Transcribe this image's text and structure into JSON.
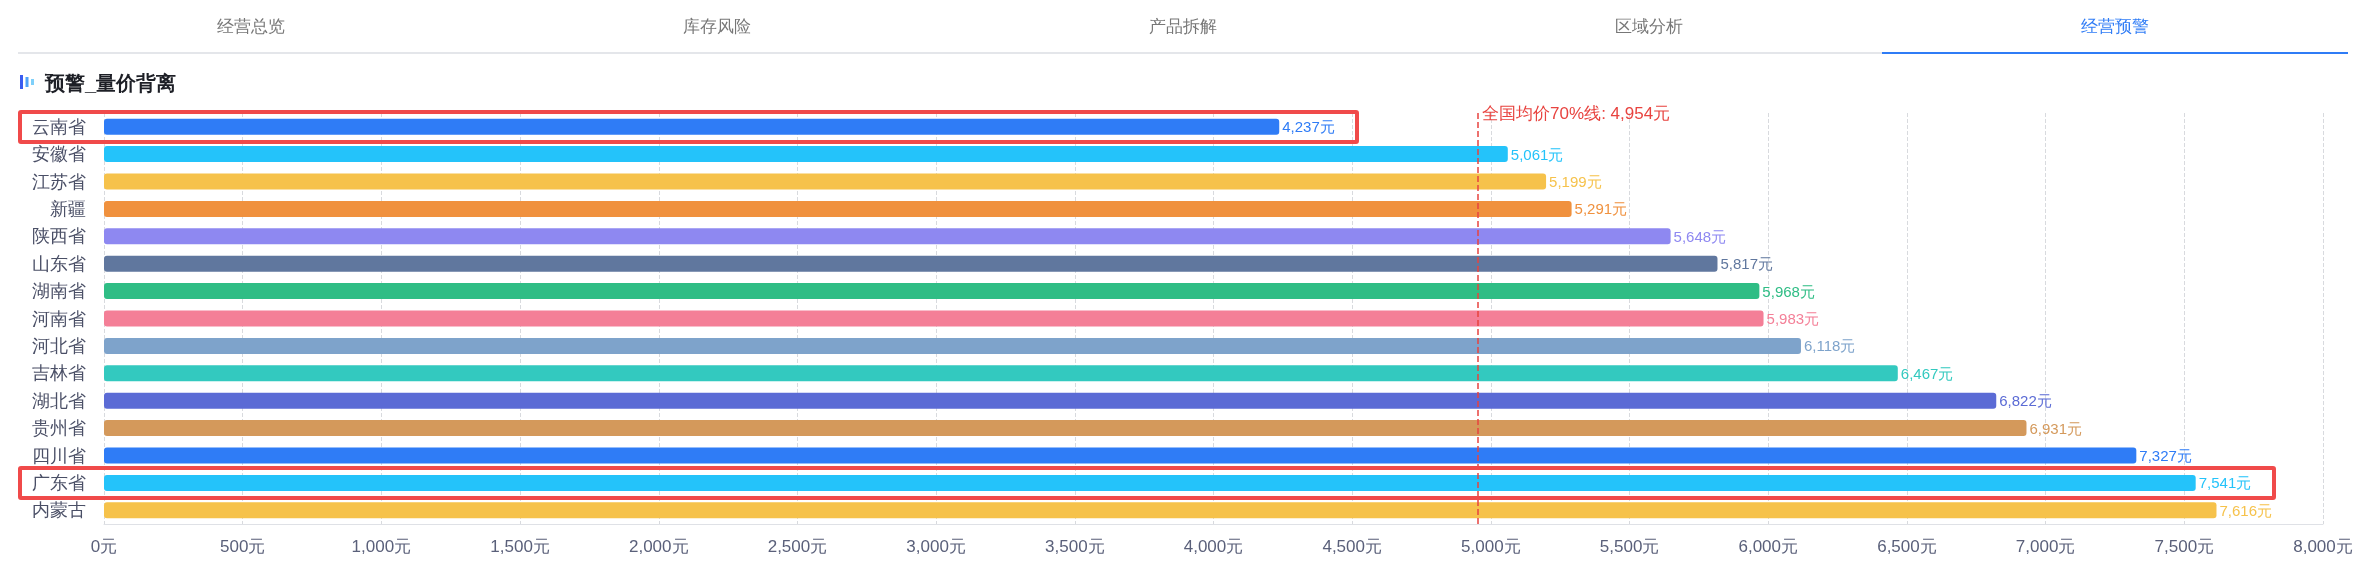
{
  "chart_data": {
    "type": "bar",
    "orientation": "horizontal",
    "title": "预警_量价背离",
    "annotations": [
      "经营总览",
      "库存风险",
      "产品拆解",
      "区域分析",
      "经营预警"
    ],
    "categories": [
      "云南省",
      "安徽省",
      "江苏省",
      "新疆",
      "陕西省",
      "山东省",
      "湖南省",
      "河南省",
      "河北省",
      "吉林省",
      "湖北省",
      "贵州省",
      "四川省",
      "广东省",
      "内蒙古"
    ],
    "values": [
      4237,
      5061,
      5199,
      5291,
      5648,
      5817,
      5968,
      5983,
      6118,
      6467,
      6822,
      6931,
      7327,
      7541,
      7616
    ],
    "value_labels": [
      "4,237元",
      "5,061元",
      "5,199元",
      "5,291元",
      "5,648元",
      "5,817元",
      "5,968元",
      "5,983元",
      "6,118元",
      "6,467元",
      "6,822元",
      "6,931元",
      "7,327元",
      "7,541元",
      "7,616元"
    ],
    "colors": [
      "#2f7cf6",
      "#24c3fa",
      "#f6c24b",
      "#f0913e",
      "#8e88f1",
      "#60779e",
      "#2fbd85",
      "#f47f97",
      "#7ea3cb",
      "#33c9bf",
      "#5b6bd5",
      "#d4995b",
      "#2f7cf6",
      "#24c3fa",
      "#f6c24b"
    ],
    "xlim": [
      0,
      8000
    ],
    "xticks": [
      {
        "value": 0,
        "label": "0元"
      },
      {
        "value": 500,
        "label": "500元"
      },
      {
        "value": 1000,
        "label": "1,000元"
      },
      {
        "value": 1500,
        "label": "1,500元"
      },
      {
        "value": 2000,
        "label": "2,000元"
      },
      {
        "value": 2500,
        "label": "2,500元"
      },
      {
        "value": 3000,
        "label": "3,000元"
      },
      {
        "value": 3500,
        "label": "3,500元"
      },
      {
        "value": 4000,
        "label": "4,000元"
      },
      {
        "value": 4500,
        "label": "4,500元"
      },
      {
        "value": 5000,
        "label": "5,000元"
      },
      {
        "value": 5500,
        "label": "5,500元"
      },
      {
        "value": 6000,
        "label": "6,000元"
      },
      {
        "value": 6500,
        "label": "6,500元"
      },
      {
        "value": 7000,
        "label": "7,000元"
      },
      {
        "value": 7500,
        "label": "7,500元"
      },
      {
        "value": 8000,
        "label": "8,000元"
      }
    ],
    "ref_lines": [
      {
        "axis": "x",
        "value": 4954,
        "label": "全国均价70%线: 4,954元",
        "color": "#e8433f",
        "line_style": "dashed"
      }
    ],
    "grid": "x"
  }
}
